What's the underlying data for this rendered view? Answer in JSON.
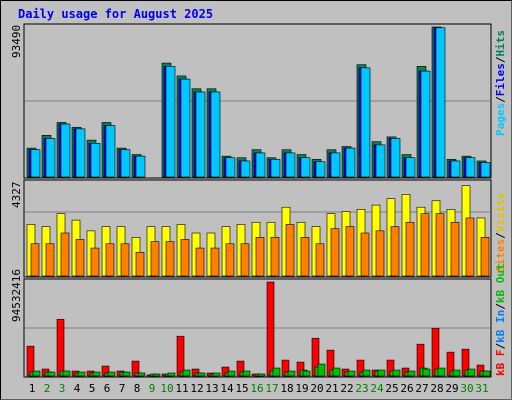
{
  "title": "Daily usage for August 2025",
  "max_labels": {
    "top": "93490",
    "middle": "4327",
    "bottom": "94532416"
  },
  "colors": {
    "hits": "#00805c",
    "files": "#0000ff",
    "pages": "#00c8ff",
    "visits": "#ffff00",
    "sites": "#ff8000",
    "kbin": "#00c000",
    "kbout": "#ff0000",
    "weekend": "#008000",
    "title": "#0000ee"
  },
  "legend": {
    "top": [
      {
        "key": "pages",
        "label": "Pages",
        "color": "#00c8ff"
      },
      {
        "key": "sep1",
        "label": "/",
        "color": "#000000"
      },
      {
        "key": "files",
        "label": "Files",
        "color": "#0000ff"
      },
      {
        "key": "sep2",
        "label": "/",
        "color": "#000000"
      },
      {
        "key": "hits",
        "label": "Hits",
        "color": "#00805c"
      }
    ],
    "middle": [
      {
        "key": "sites",
        "label": "Sites",
        "color": "#ff8000"
      },
      {
        "key": "sep1",
        "label": "/",
        "color": "#000000"
      },
      {
        "key": "visits",
        "label": "Visits",
        "color": "#e0c000"
      }
    ],
    "bottom": [
      {
        "key": "kbf",
        "label": "kB F",
        "color": "#ff0000"
      },
      {
        "key": "sep1",
        "label": "/",
        "color": "#000000"
      },
      {
        "key": "kbin",
        "label": "kB In",
        "color": "#0080ff"
      },
      {
        "key": "sep2",
        "label": "/",
        "color": "#000000"
      },
      {
        "key": "kbout",
        "label": "kB Out",
        "color": "#00c000"
      }
    ]
  },
  "chart_data": {
    "type": "bar",
    "title": "Daily usage for August 2025",
    "categories": [
      "1",
      "2",
      "3",
      "4",
      "5",
      "6",
      "7",
      "8",
      "9",
      "10",
      "11",
      "12",
      "13",
      "14",
      "15",
      "16",
      "17",
      "18",
      "19",
      "20",
      "21",
      "22",
      "23",
      "24",
      "25",
      "26",
      "27",
      "28",
      "29",
      "30",
      "31"
    ],
    "weekend_days": [
      "2",
      "3",
      "9",
      "10",
      "16",
      "17",
      "23",
      "24",
      "30",
      "31"
    ],
    "panels": [
      {
        "name": "top",
        "ylim": [
          0,
          93490
        ],
        "series": [
          {
            "name": "Hits",
            "values": [
              18000,
              26000,
              34000,
              31000,
              23000,
              34000,
              18000,
              14000,
              0,
              71000,
              63000,
              55000,
              55000,
              13000,
              12000,
              17000,
              12000,
              17000,
              14000,
              11000,
              17000,
              19000,
              70000,
              22000,
              25000,
              14000,
              69000,
              95000,
              11000,
              13000,
              10000
            ]
          },
          {
            "name": "Files",
            "values": [
              17000,
              24000,
              33000,
              30000,
              21000,
              32000,
              17000,
              13000,
              0,
              69000,
              61000,
              53000,
              53000,
              12000,
              10000,
              15000,
              11000,
              15000,
              12000,
              9500,
              15000,
              18000,
              68000,
              20000,
              24000,
              12000,
              66000,
              93000,
              10000,
              12000,
              9000
            ]
          },
          {
            "name": "Pages",
            "values": [
              17000,
              24000,
              33000,
              30000,
              21000,
              32000,
              17000,
              13000,
              0,
              69000,
              61000,
              53000,
              53000,
              12000,
              10000,
              15000,
              11000,
              15000,
              12000,
              9500,
              15000,
              18000,
              68000,
              20000,
              24000,
              12000,
              66000,
              93000,
              10000,
              12000,
              9000
            ]
          }
        ]
      },
      {
        "name": "middle",
        "ylim": [
          0,
          4327
        ],
        "series": [
          {
            "name": "Visits",
            "values": [
              2400,
              2300,
              2900,
              2600,
              2100,
              2300,
              2300,
              1800,
              2300,
              2300,
              2400,
              2000,
              2000,
              2300,
              2400,
              2500,
              2500,
              3200,
              2500,
              2300,
              2900,
              3000,
              3100,
              3300,
              3600,
              3800,
              3200,
              3500,
              3100,
              4200,
              2700
            ]
          },
          {
            "name": "Sites",
            "values": [
              1500,
              1500,
              2000,
              1700,
              1300,
              1500,
              1500,
              1100,
              1600,
              1600,
              1700,
              1300,
              1300,
              1500,
              1500,
              1800,
              1800,
              2400,
              1800,
              1500,
              2200,
              2300,
              2000,
              2100,
              2300,
              2500,
              2900,
              2900,
              2500,
              2700,
              1800
            ]
          }
        ]
      },
      {
        "name": "bottom",
        "ylim": [
          0,
          94532416
        ],
        "series": [
          {
            "name": "kB F",
            "values": [
              30000000,
              7000000,
              57000000,
              5000000,
              5000000,
              10000000,
              5000000,
              15000000,
              1000000,
              2000000,
              40000000,
              7000000,
              3000000,
              9000000,
              15000000,
              2000000,
              95000000,
              16000000,
              14000000,
              38000000,
              26000000,
              7000000,
              16000000,
              6000000,
              16000000,
              8000000,
              32000000,
              48000000,
              24000000,
              27000000,
              11000000
            ]
          },
          {
            "name": "kB In",
            "values": [
              4000000,
              4000000,
              5000000,
              3000000,
              3000000,
              3000000,
              4000000,
              3000000,
              2000000,
              2000000,
              4000000,
              3000000,
              2000000,
              3000000,
              4000000,
              2000000,
              5000000,
              4000000,
              6000000,
              9000000,
              6000000,
              4000000,
              4000000,
              5000000,
              5000000,
              4000000,
              8000000,
              7000000,
              5000000,
              6000000,
              5000000
            ]
          },
          {
            "name": "kB Out",
            "values": [
              5000000,
              4000000,
              5000000,
              4000000,
              4000000,
              4000000,
              4000000,
              3000000,
              2000000,
              3000000,
              6000000,
              3000000,
              3000000,
              5000000,
              5000000,
              2000000,
              8000000,
              5000000,
              5000000,
              12000000,
              8000000,
              5000000,
              6000000,
              6000000,
              6000000,
              5000000,
              7000000,
              8000000,
              6000000,
              7000000,
              5000000
            ]
          }
        ]
      }
    ]
  }
}
